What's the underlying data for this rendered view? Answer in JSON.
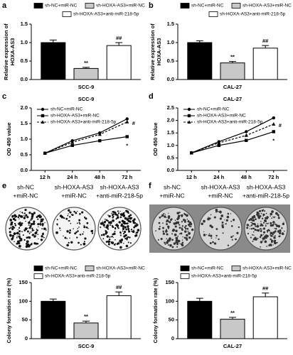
{
  "chart_data": [
    {
      "panel": "a",
      "type": "bar",
      "xlabel": "SCC-9",
      "ylabel": [
        "Relative expression of",
        "HOXA-AS3"
      ],
      "ylim": [
        0,
        1.5
      ],
      "yticks": [
        {
          "value": 0,
          "label": "0.0"
        },
        {
          "value": 0.5,
          "label": "0.5"
        },
        {
          "value": 1,
          "label": "1.0"
        },
        {
          "value": 1.5,
          "label": "1.5"
        }
      ],
      "series": [
        {
          "name": "sh-NC+miR-NC",
          "color": "#000000",
          "values": [
            1.0
          ],
          "errors": [
            0.07
          ]
        },
        {
          "name": "sh-HOXA-AS3+miR-NC",
          "color": "#c8c8c8",
          "values": [
            0.3
          ],
          "errors": [
            0.03
          ],
          "annotation": "**"
        },
        {
          "name": "sh-HOXA-AS3+anti-miR-218-5p",
          "color": "#ffffff",
          "values": [
            0.92
          ],
          "errors": [
            0.08
          ],
          "annotation": "##"
        }
      ]
    },
    {
      "panel": "b",
      "type": "bar",
      "xlabel": "CAL-27",
      "ylabel": [
        "Relative expression of",
        "HOXA-AS3"
      ],
      "ylim": [
        0,
        1.5
      ],
      "yticks": [
        {
          "value": 0,
          "label": "0.0"
        },
        {
          "value": 0.5,
          "label": "0.5"
        },
        {
          "value": 1,
          "label": "1.0"
        },
        {
          "value": 1.5,
          "label": "1.5"
        }
      ],
      "series": [
        {
          "name": "sh-NC+miR-NC",
          "color": "#000000",
          "values": [
            1.0
          ],
          "errors": [
            0.05
          ]
        },
        {
          "name": "sh-HOXA-AS3+miR-NC",
          "color": "#c8c8c8",
          "values": [
            0.45
          ],
          "errors": [
            0.04
          ],
          "annotation": "**"
        },
        {
          "name": "sh-HOXA-AS3+anti-miR-218-5p",
          "color": "#ffffff",
          "values": [
            0.85
          ],
          "errors": [
            0.07
          ],
          "annotation": "##"
        }
      ]
    },
    {
      "panel": "c",
      "type": "line",
      "title": "SCC-9",
      "ylabel": "OD 450 value",
      "categories": [
        "12 h",
        "24 h",
        "48 h",
        "72 h"
      ],
      "ylim": [
        0,
        2.0
      ],
      "yticks": [
        {
          "value": 0,
          "label": "0.0"
        },
        {
          "value": 0.5,
          "label": "0.5"
        },
        {
          "value": 1,
          "label": "1.0"
        },
        {
          "value": 1.5,
          "label": "1.5"
        },
        {
          "value": 2,
          "label": "2.0"
        }
      ],
      "series": [
        {
          "name": "sh-NC+miR-NC",
          "color": "#000000",
          "marker": "circle",
          "values": [
            0.55,
            0.95,
            1.2,
            1.65
          ]
        },
        {
          "name": "sh-HOXA-AS3+miR-NC",
          "color": "#000000",
          "marker": "square",
          "values": [
            0.55,
            0.8,
            0.95,
            1.08
          ],
          "annotation": "*"
        },
        {
          "name": "sh-HOXA-AS3+anti-miR-218-5p",
          "color": "#000000",
          "marker": "triangle",
          "linestyle": "dashed",
          "values": [
            0.55,
            0.9,
            1.15,
            1.55
          ],
          "annotation": "#"
        }
      ]
    },
    {
      "panel": "d",
      "type": "line",
      "title": "CAL-27",
      "ylabel": "OD 450 value",
      "categories": [
        "12 h",
        "24 h",
        "48 h",
        "72 h"
      ],
      "ylim": [
        0,
        2.5
      ],
      "yticks": [
        {
          "value": 0,
          "label": "0.0"
        },
        {
          "value": 0.5,
          "label": "0.5"
        },
        {
          "value": 1,
          "label": "1.0"
        },
        {
          "value": 1.5,
          "label": "1.5"
        },
        {
          "value": 2,
          "label": "2.0"
        },
        {
          "value": 2.5,
          "label": "2.5"
        }
      ],
      "series": [
        {
          "name": "sh-NC+miR-NC",
          "color": "#000000",
          "marker": "circle",
          "values": [
            0.7,
            1.15,
            1.55,
            2.1
          ]
        },
        {
          "name": "sh-HOXA-AS3+miR-NC",
          "color": "#000000",
          "marker": "square",
          "values": [
            0.7,
            1.0,
            1.2,
            1.55
          ],
          "annotation": "*"
        },
        {
          "name": "sh-HOXA-AS3+anti-miR-218-5p",
          "color": "#000000",
          "marker": "triangle",
          "linestyle": "dashed",
          "values": [
            0.7,
            1.1,
            1.4,
            1.85
          ],
          "annotation": "#"
        }
      ]
    },
    {
      "panel": "e",
      "type": "bar",
      "xlabel": "SCC-9",
      "ylabel": [
        "Colony formation rate (%)"
      ],
      "image_labels": [
        [
          "sh-NC",
          "+miR-NC"
        ],
        [
          "sh-HOXA-AS3",
          "+miR-NC"
        ],
        [
          "sh-HOXA-AS3",
          "+anti-miR-218-5p"
        ]
      ],
      "ylim": [
        0,
        150
      ],
      "yticks": [
        0,
        50,
        100,
        150
      ],
      "series": [
        {
          "name": "sh-NC+miR-NC",
          "color": "#000000",
          "values": [
            100
          ],
          "errors": [
            6
          ]
        },
        {
          "name": "sh-HOXA-AS3+miR-NC",
          "color": "#c8c8c8",
          "values": [
            42
          ],
          "errors": [
            5
          ],
          "annotation": "**"
        },
        {
          "name": "sh-HOXA-AS3+anti-miR-218-5p",
          "color": "#ffffff",
          "values": [
            115
          ],
          "errors": [
            10
          ],
          "annotation": "##"
        }
      ]
    },
    {
      "panel": "f",
      "type": "bar",
      "xlabel": "CAL-27",
      "ylabel": [
        "Colony formation rate (%)"
      ],
      "image_labels": [
        [
          "sh-NC",
          "+miR-NC"
        ],
        [
          "sh-HOXA-AS3",
          "+miR-NC"
        ],
        [
          "sh-HOXA-AS3",
          "+anti-miR-218-5p"
        ]
      ],
      "ylim": [
        0,
        150
      ],
      "yticks": [
        0,
        50,
        100,
        150
      ],
      "series": [
        {
          "name": "sh-NC+miR-NC",
          "color": "#000000",
          "values": [
            100
          ],
          "errors": [
            8
          ]
        },
        {
          "name": "sh-HOXA-AS3+miR-NC",
          "color": "#c8c8c8",
          "values": [
            52
          ],
          "errors": [
            5
          ],
          "annotation": "**"
        },
        {
          "name": "sh-HOXA-AS3+anti-miR-218-5p",
          "color": "#ffffff",
          "values": [
            112
          ],
          "errors": [
            10
          ],
          "annotation": "##"
        }
      ]
    }
  ]
}
